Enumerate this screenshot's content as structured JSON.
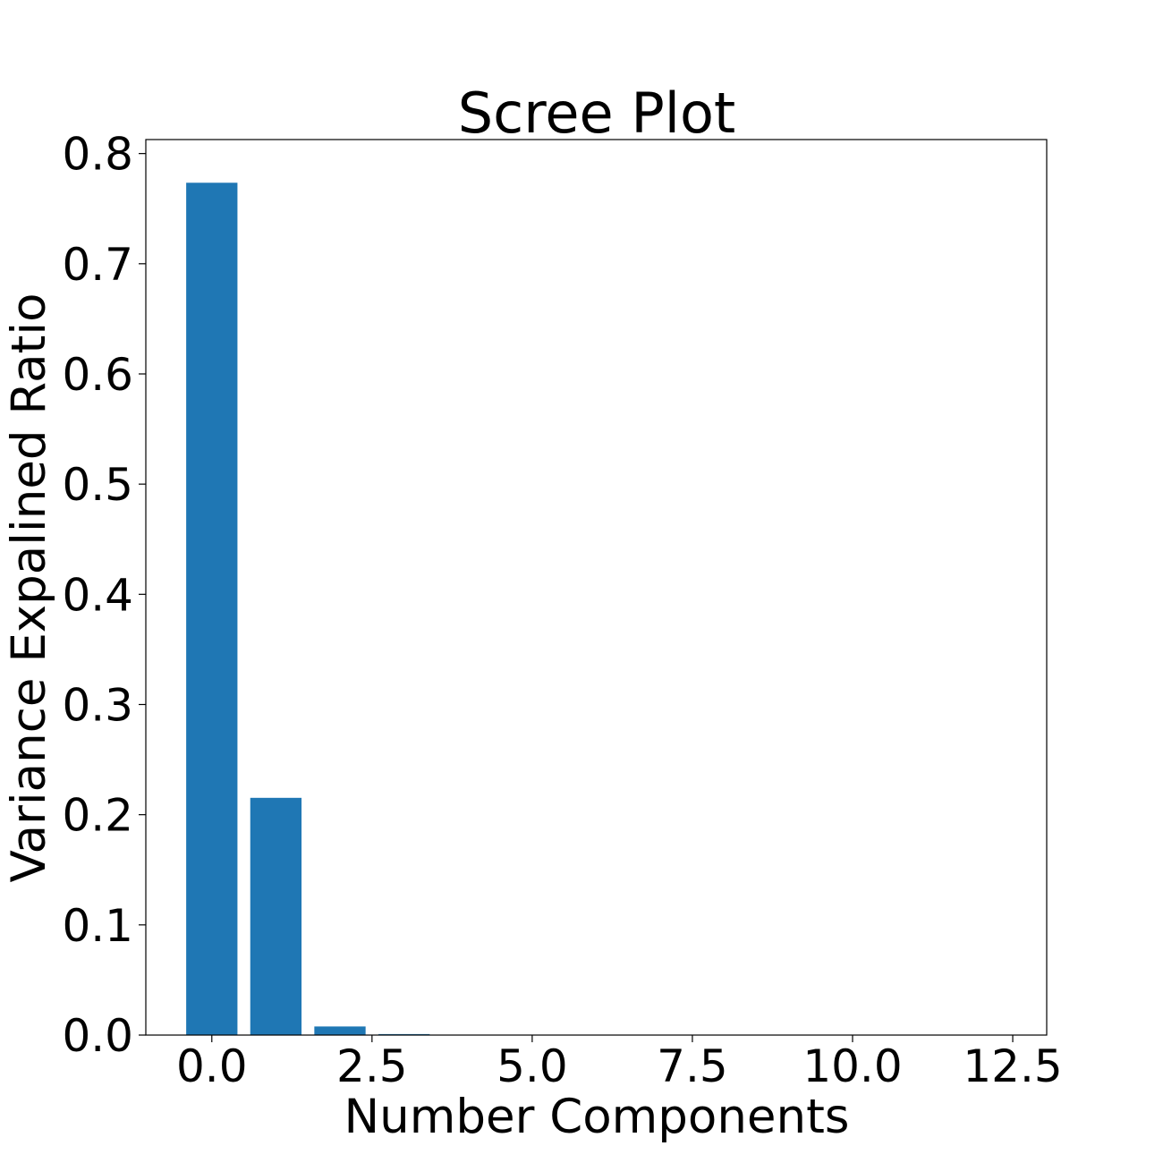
{
  "chart_data": {
    "type": "bar",
    "title": "Scree Plot",
    "xlabel": "Number Components",
    "ylabel": "Variance Expalined Ratio",
    "x": [
      0,
      1,
      2,
      3,
      4,
      5,
      6,
      7,
      8,
      9,
      10,
      11,
      12
    ],
    "values": [
      0.7735,
      0.2153,
      0.0078,
      0.0009,
      0.0002,
      0.0001,
      0.0001,
      0.0,
      0.0,
      0.0,
      0.0,
      0.0,
      0.0
    ],
    "xlim": [
      -1.03,
      13.03
    ],
    "ylim": [
      0,
      0.8127
    ],
    "xticks": [
      0.0,
      2.5,
      5.0,
      7.5,
      10.0,
      12.5
    ],
    "xtick_labels": [
      "0.0",
      "2.5",
      "5.0",
      "7.5",
      "10.0",
      "12.5"
    ],
    "yticks": [
      0.0,
      0.1,
      0.2,
      0.3,
      0.4,
      0.5,
      0.6,
      0.7,
      0.8
    ],
    "ytick_labels": [
      "0.0",
      "0.1",
      "0.2",
      "0.3",
      "0.4",
      "0.5",
      "0.6",
      "0.7",
      "0.8"
    ],
    "bar_color": "#1f77b4",
    "grid": false,
    "legend": "none"
  }
}
